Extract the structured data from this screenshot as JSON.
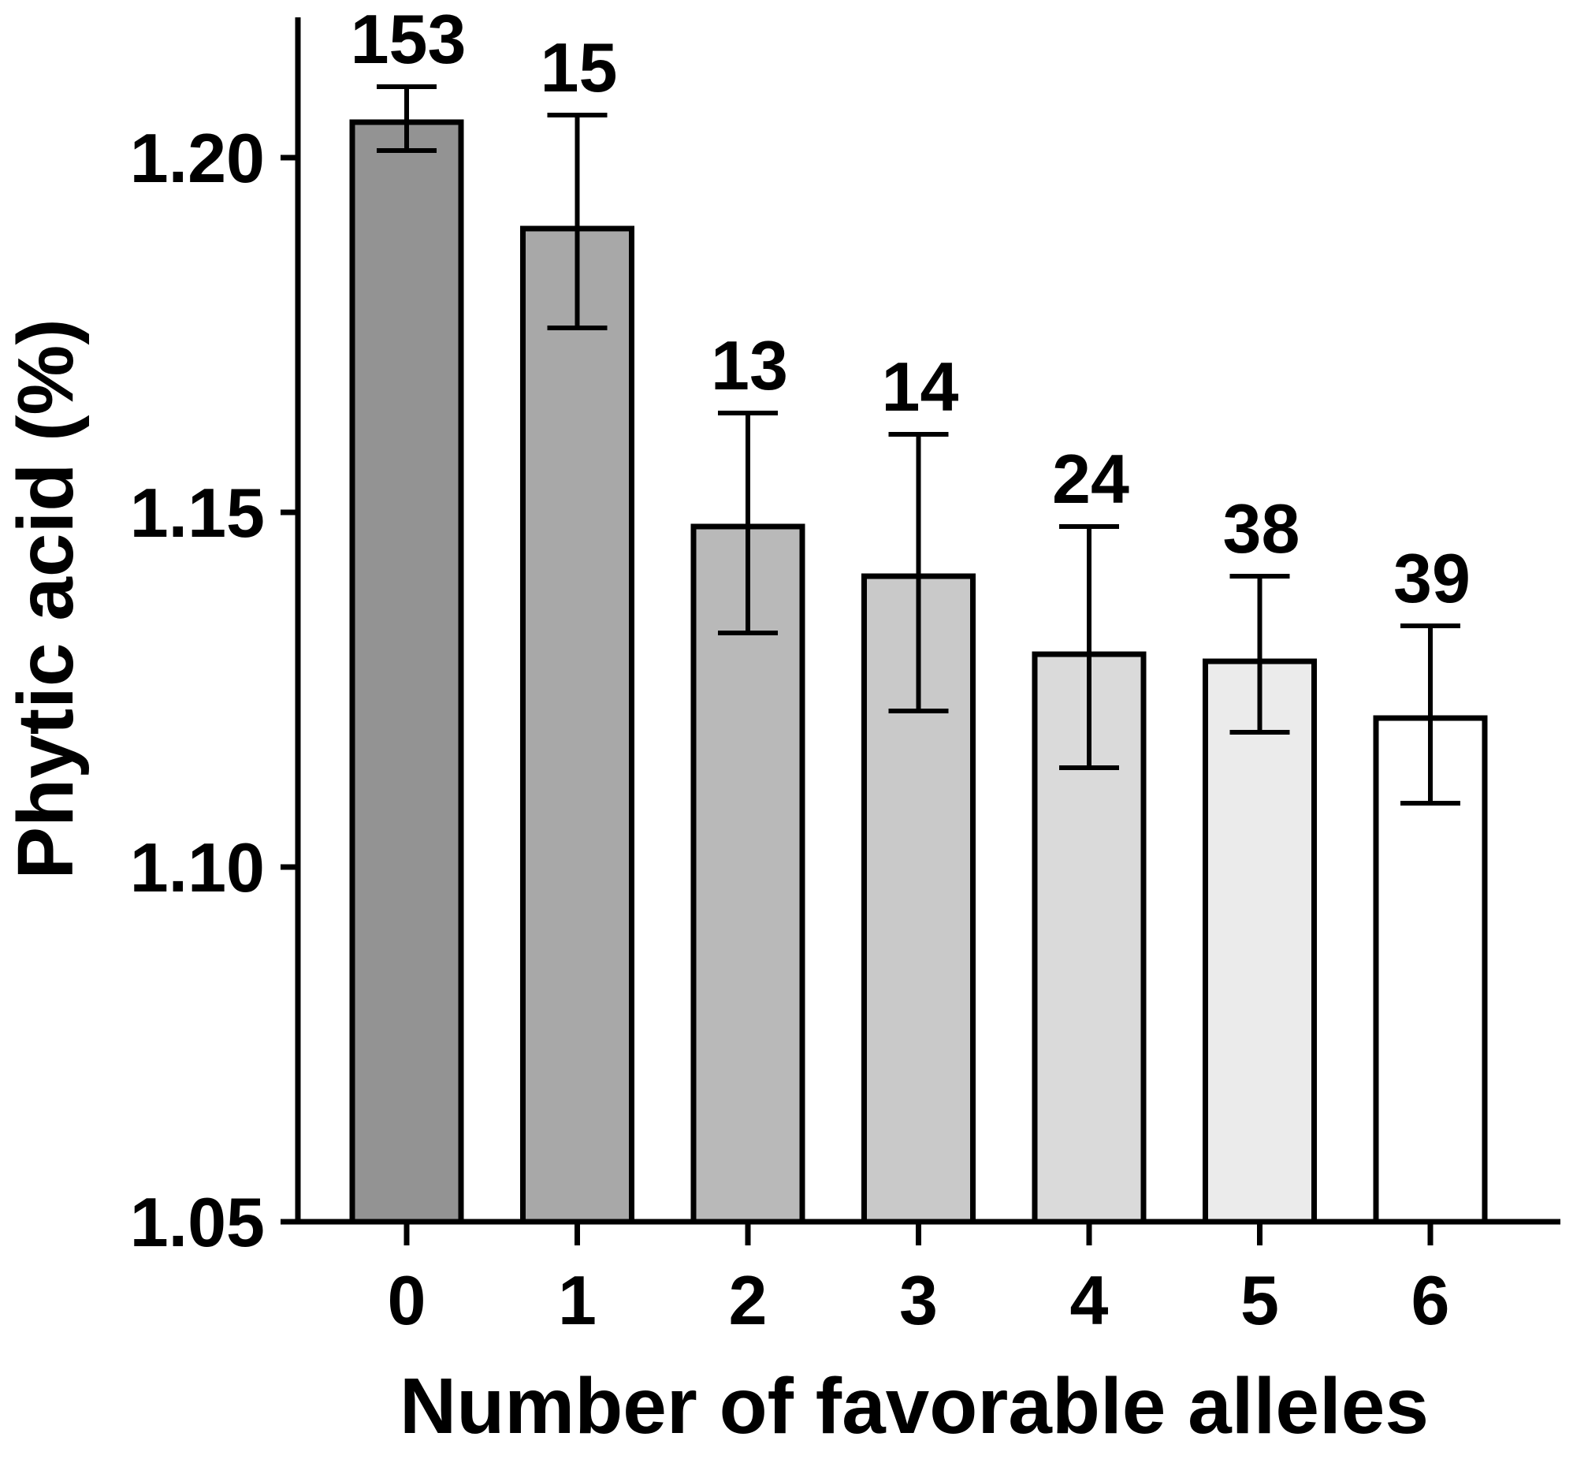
{
  "chart_data": {
    "type": "bar",
    "title": "",
    "xlabel": "Number of favorable alleles",
    "ylabel": "Phytic acid (%)",
    "ylim": [
      1.05,
      1.22
    ],
    "yticks": [
      1.05,
      1.1,
      1.15,
      1.2
    ],
    "ytick_labels": [
      "1.05",
      "1.10",
      "1.15",
      "1.20"
    ],
    "grid": false,
    "legend": "none",
    "categories": [
      "0",
      "1",
      "2",
      "3",
      "4",
      "5",
      "6"
    ],
    "values": [
      1.205,
      1.19,
      1.148,
      1.141,
      1.13,
      1.129,
      1.121
    ],
    "error_upper": [
      1.21,
      1.206,
      1.164,
      1.161,
      1.148,
      1.141,
      1.134
    ],
    "error_lower": [
      1.201,
      1.176,
      1.133,
      1.122,
      1.114,
      1.119,
      1.109
    ],
    "count_labels": [
      "153",
      "15",
      "13",
      "14",
      "24",
      "38",
      "39"
    ],
    "bar_colors": [
      "#939393",
      "#a8a8a8",
      "#b9b9b9",
      "#c9c9c9",
      "#dadada",
      "#ebebeb",
      "#ffffff"
    ],
    "bar_edge_color": "#000000"
  }
}
